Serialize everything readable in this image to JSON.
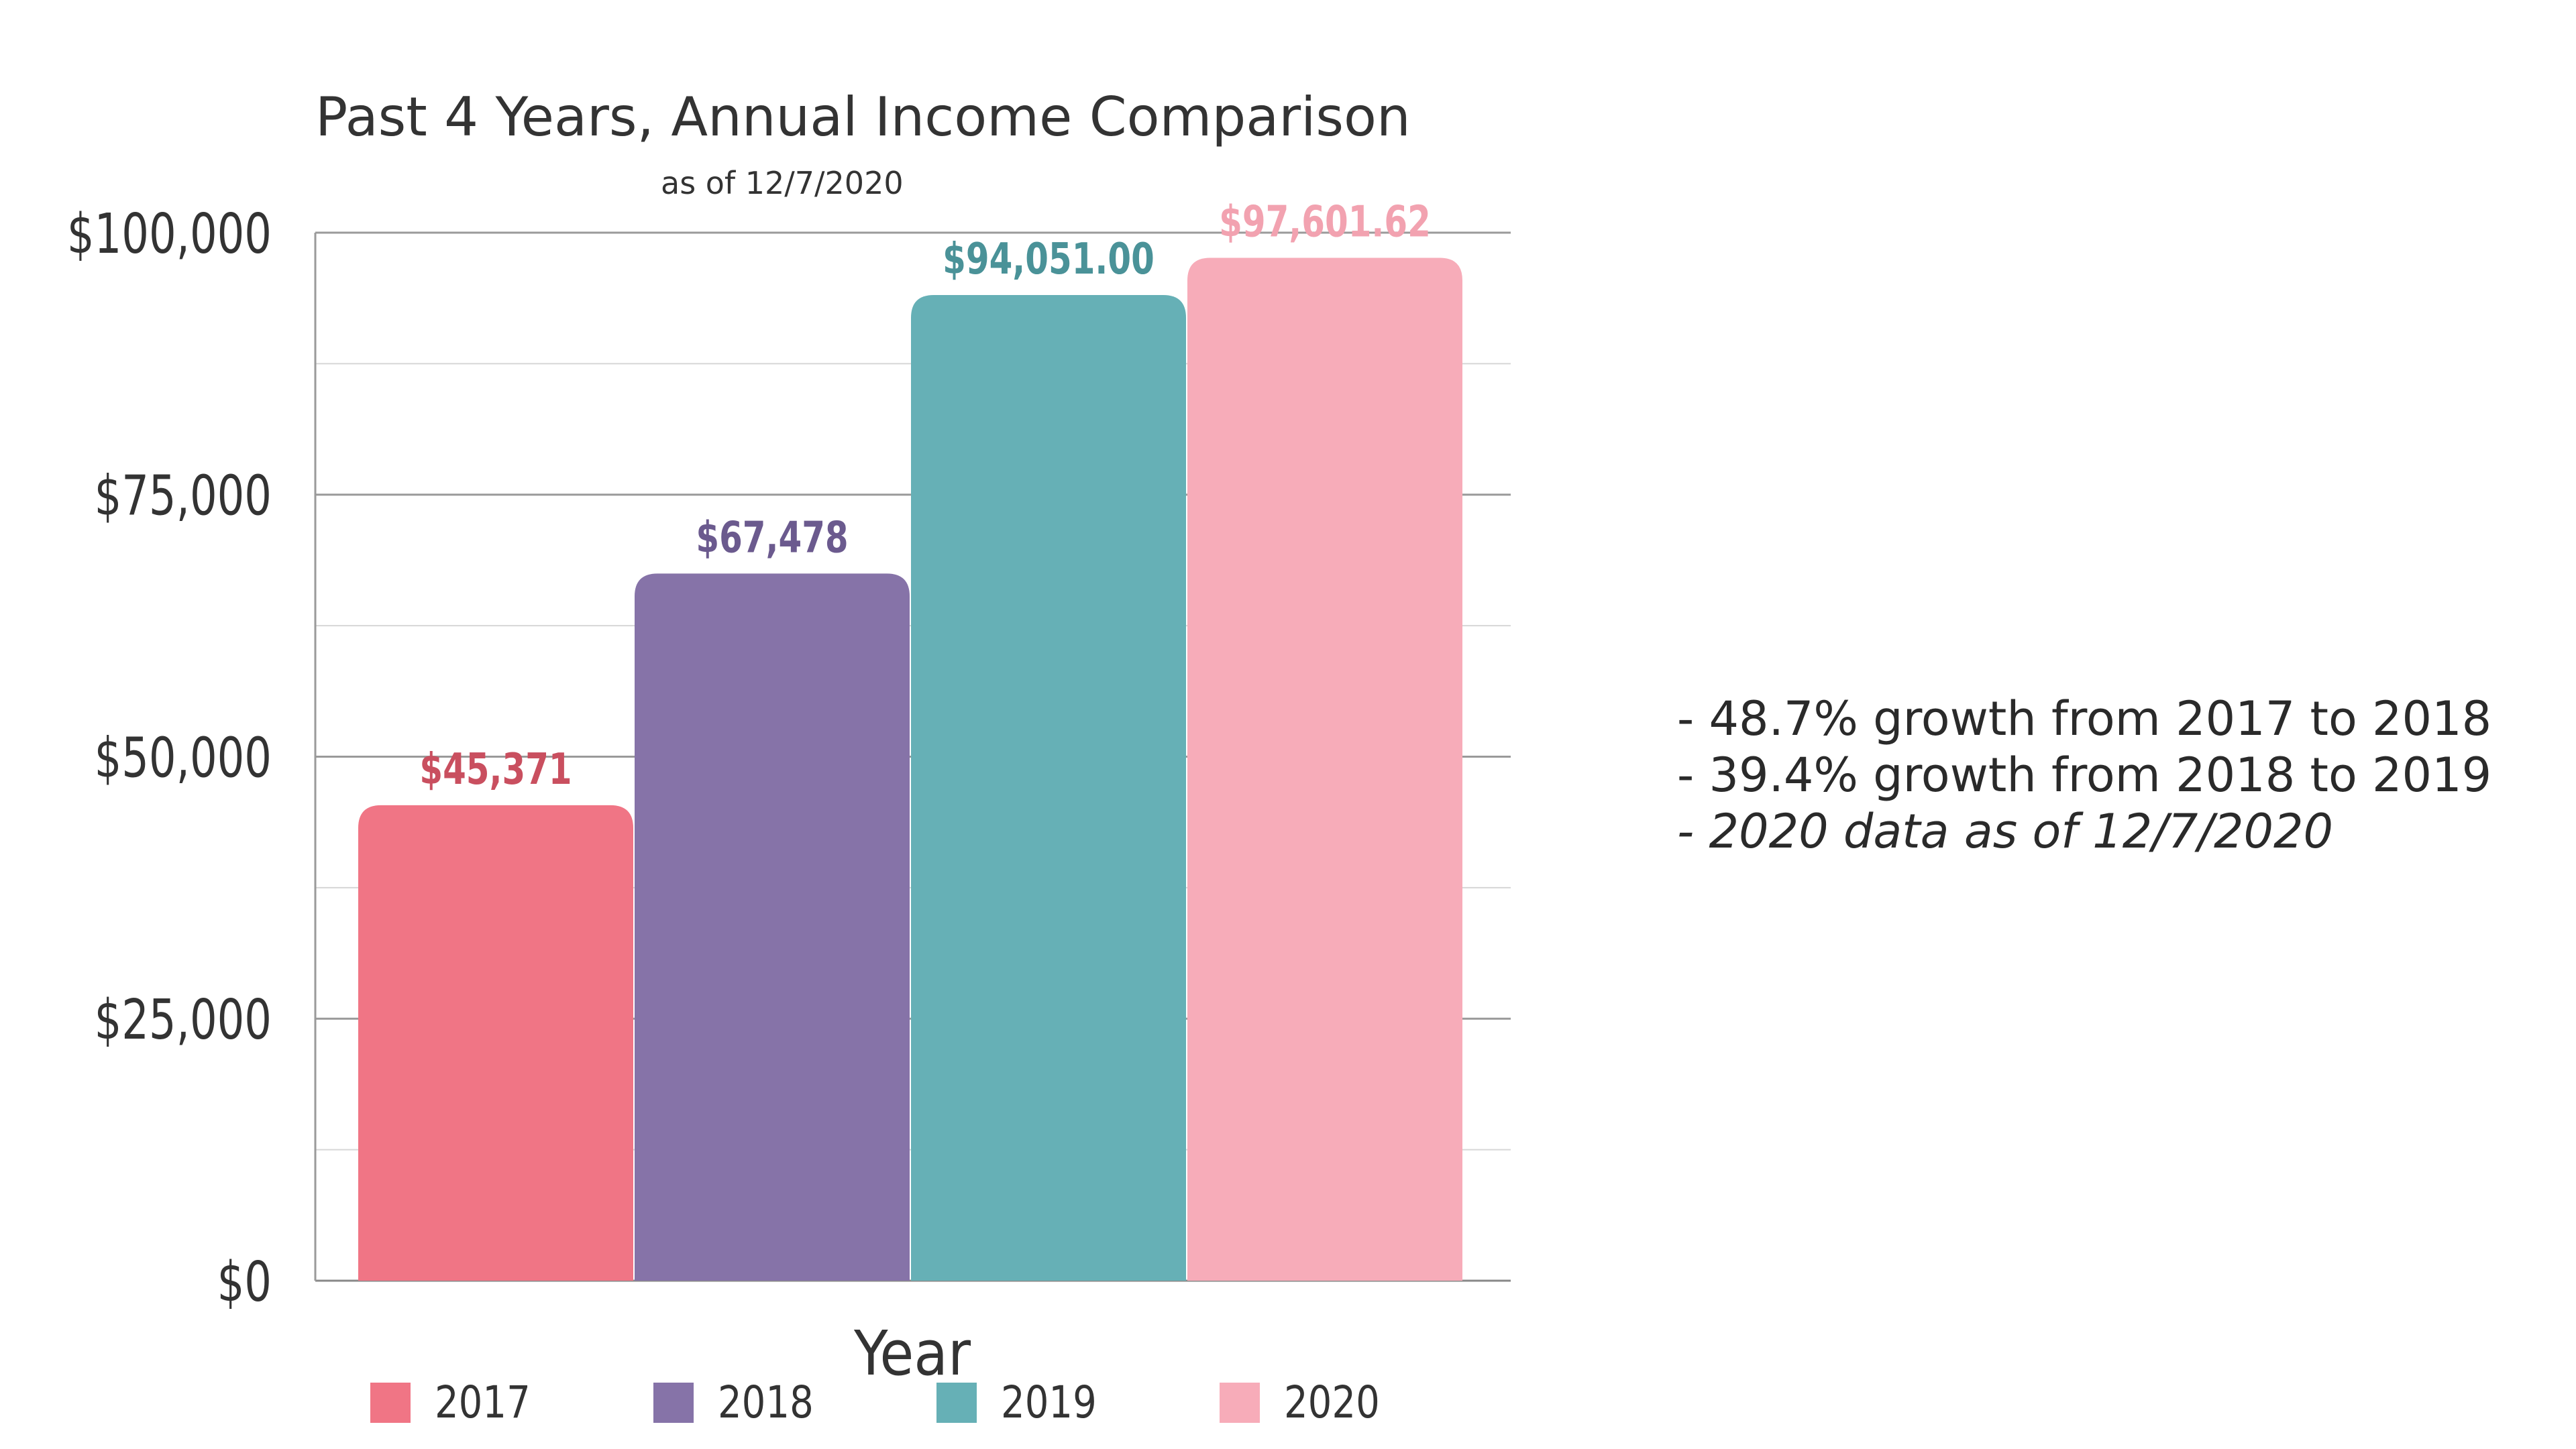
{
  "chart_data": {
    "type": "bar",
    "title": "Past 4 Years, Annual Income Comparison",
    "subtitle": "as of 12/7/2020",
    "xlabel": "Year",
    "ylabel": "",
    "categories": [
      "2017",
      "2018",
      "2019",
      "2020"
    ],
    "values": [
      45371,
      67478,
      94051.0,
      97601.62
    ],
    "data_labels": [
      "$45,371",
      "$67,478",
      "$94,051.00",
      "$97,601.62"
    ],
    "ylim": [
      0,
      100000
    ],
    "yticks": [
      0,
      25000,
      50000,
      75000,
      100000
    ],
    "ytick_labels": [
      "$0",
      "$25,000",
      "$50,000",
      "$75,000",
      "$100,000"
    ],
    "minor_gridlines": [
      12500,
      37500,
      62500,
      87500
    ],
    "grid": true,
    "legend": {
      "placement": "bottom",
      "entries": [
        "2017",
        "2018",
        "2019",
        "2020"
      ]
    },
    "colors": [
      "#F07585",
      "#8673A8",
      "#66B0B6",
      "#F7ACB9"
    ],
    "label_colors": [
      "#C94F5F",
      "#6B5A8E",
      "#4A9298",
      "#F2A2B0"
    ]
  },
  "notes": [
    "- 48.7% growth from 2017 to 2018",
    "- 39.4% growth from 2018 to 2019",
    "- 2020 data as of 12/7/2020"
  ]
}
